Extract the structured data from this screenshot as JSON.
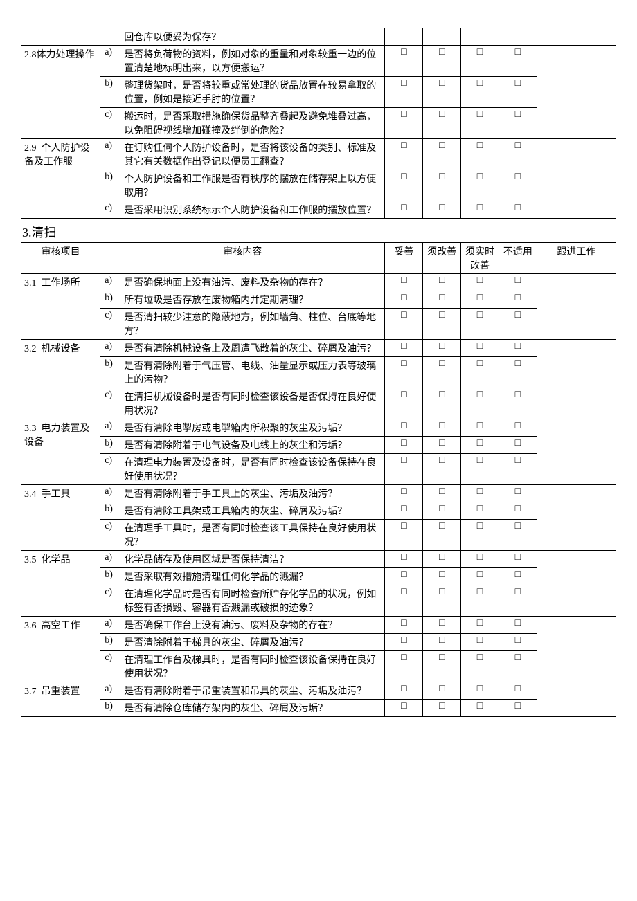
{
  "checkbox_symbol": "□",
  "section3_title": "3.清扫",
  "headers": {
    "item": "审核项目",
    "content": "审核内容",
    "c1": "妥善",
    "c2": "须改善",
    "c3": "须实时改善",
    "c4": "不适用",
    "followup": "跟进工作"
  },
  "table1": [
    {
      "item": "",
      "rows": [
        {
          "label": "",
          "text": "回仓库以便妥为保存？",
          "checks": [
            false,
            false,
            false,
            false
          ]
        }
      ]
    },
    {
      "item": "2.8体力处理操作",
      "rows": [
        {
          "label": "a)",
          "text": "是否将负荷物的资料，例如对象的重量和对象较重一边的位置清楚地标明出来，以方便搬运？",
          "checks": [
            true,
            true,
            true,
            true
          ]
        },
        {
          "label": "b)",
          "text": "整理货架时，是否将较重或常处理的货品放置在较易拿取的位置，例如是接近手肘的位置？",
          "checks": [
            true,
            true,
            true,
            true
          ]
        },
        {
          "label": "c)",
          "text": "搬运时，是否采取措施确保货品整齐叠起及避免堆叠过高，以免阻碍视线增加碰撞及绊倒的危险？",
          "checks": [
            true,
            true,
            true,
            true
          ]
        }
      ]
    },
    {
      "item": "2.9  个人防护设备及工作服",
      "rows": [
        {
          "label": "a)",
          "text": "在订购任何个人防护设备时，是否将该设备的类别、标准及其它有关数据作出登记以便员工翻查？",
          "checks": [
            true,
            true,
            true,
            true
          ]
        },
        {
          "label": "b)",
          "text": "个人防护设备和工作服是否有秩序的摆放在储存架上以方便取用？",
          "checks": [
            true,
            true,
            true,
            true
          ]
        },
        {
          "label": "c)",
          "text": "是否采用识别系统标示个人防护设备和工作服的摆放位置？",
          "checks": [
            true,
            true,
            true,
            true
          ]
        }
      ]
    }
  ],
  "table2": [
    {
      "item": "3.1  工作场所",
      "rows": [
        {
          "label": "a)",
          "text": "是否确保地面上没有油污、废料及杂物的存在？",
          "checks": [
            true,
            true,
            true,
            true
          ]
        },
        {
          "label": "b)",
          "text": "所有垃圾是否存放在废物箱内并定期清理？",
          "checks": [
            true,
            true,
            true,
            true
          ]
        },
        {
          "label": "c)",
          "text": "是否清扫较少注意的隐蔽地方，例如墙角、柱位、台底等地方？",
          "checks": [
            true,
            true,
            true,
            true
          ]
        }
      ]
    },
    {
      "item": "3.2  机械设备",
      "rows": [
        {
          "label": "a)",
          "text": "是否有清除机械设备上及周遭飞散着的灰尘、碎屑及油污？",
          "checks": [
            true,
            true,
            true,
            true
          ]
        },
        {
          "label": "b)",
          "text": "是否有清除附着于气压管、电线、油量显示或压力表等玻璃上的污物？",
          "checks": [
            true,
            true,
            true,
            true
          ]
        },
        {
          "label": "c)",
          "text": "在清扫机械设备时是否有同时检查该设备是否保持在良好使用状况？",
          "checks": [
            true,
            true,
            true,
            true
          ]
        }
      ]
    },
    {
      "item": "3.3  电力装置及设备",
      "rows": [
        {
          "label": "a)",
          "text": "是否有清除电掣房或电掣箱内所积聚的灰尘及污垢？",
          "checks": [
            true,
            true,
            true,
            true
          ]
        },
        {
          "label": "b)",
          "text": "是否有清除附着于电气设备及电线上的灰尘和污垢？",
          "checks": [
            true,
            true,
            true,
            true
          ]
        },
        {
          "label": "c)",
          "text": "在清理电力装置及设备时，是否有同时检查该设备保持在良好使用状况？",
          "checks": [
            true,
            true,
            true,
            true
          ]
        }
      ]
    },
    {
      "item": "3.4  手工具",
      "rows": [
        {
          "label": "a)",
          "text": "是否有清除附着于手工具上的灰尘、污垢及油污？",
          "checks": [
            true,
            true,
            true,
            true
          ]
        },
        {
          "label": "b)",
          "text": "是否有清除工具架或工具箱内的灰尘、碎屑及污垢？",
          "checks": [
            true,
            true,
            true,
            true
          ]
        },
        {
          "label": "c)",
          "text": "在清理手工具时，是否有同时检查该工具保持在良好使用状况？",
          "checks": [
            true,
            true,
            true,
            true
          ]
        }
      ]
    },
    {
      "item": "3.5  化学品",
      "rows": [
        {
          "label": "a)",
          "text": "化学品储存及使用区域是否保持清洁？",
          "checks": [
            true,
            true,
            true,
            true
          ]
        },
        {
          "label": "b)",
          "text": "是否采取有效措施清理任何化学品的溅漏？",
          "checks": [
            true,
            true,
            true,
            true
          ]
        },
        {
          "label": "c)",
          "text": "在清理化学品时是否有同时检查所贮存化学品的状况，例如标签有否损毁、容器有否溅漏或破损的迹象？",
          "checks": [
            true,
            true,
            true,
            true
          ]
        }
      ]
    },
    {
      "item": "3.6  高空工作",
      "rows": [
        {
          "label": "a)",
          "text": "是否确保工作台上没有油污、废料及杂物的存在？",
          "checks": [
            true,
            true,
            true,
            true
          ]
        },
        {
          "label": "b)",
          "text": "是否清除附着于梯具的灰尘、碎屑及油污？",
          "checks": [
            true,
            true,
            true,
            true
          ]
        },
        {
          "label": "c)",
          "text": "在清理工作台及梯具时，是否有同时检查该设备保持在良好使用状况？",
          "checks": [
            true,
            true,
            true,
            true
          ]
        }
      ]
    },
    {
      "item": "3.7  吊重装置",
      "rows": [
        {
          "label": "a)",
          "text": "是否有清除附着于吊重装置和吊具的灰尘、污垢及油污？",
          "checks": [
            true,
            true,
            true,
            true
          ]
        },
        {
          "label": "b)",
          "text": "是否有清除仓库储存架内的灰尘、碎屑及污垢？",
          "checks": [
            true,
            true,
            true,
            true
          ]
        }
      ]
    }
  ]
}
